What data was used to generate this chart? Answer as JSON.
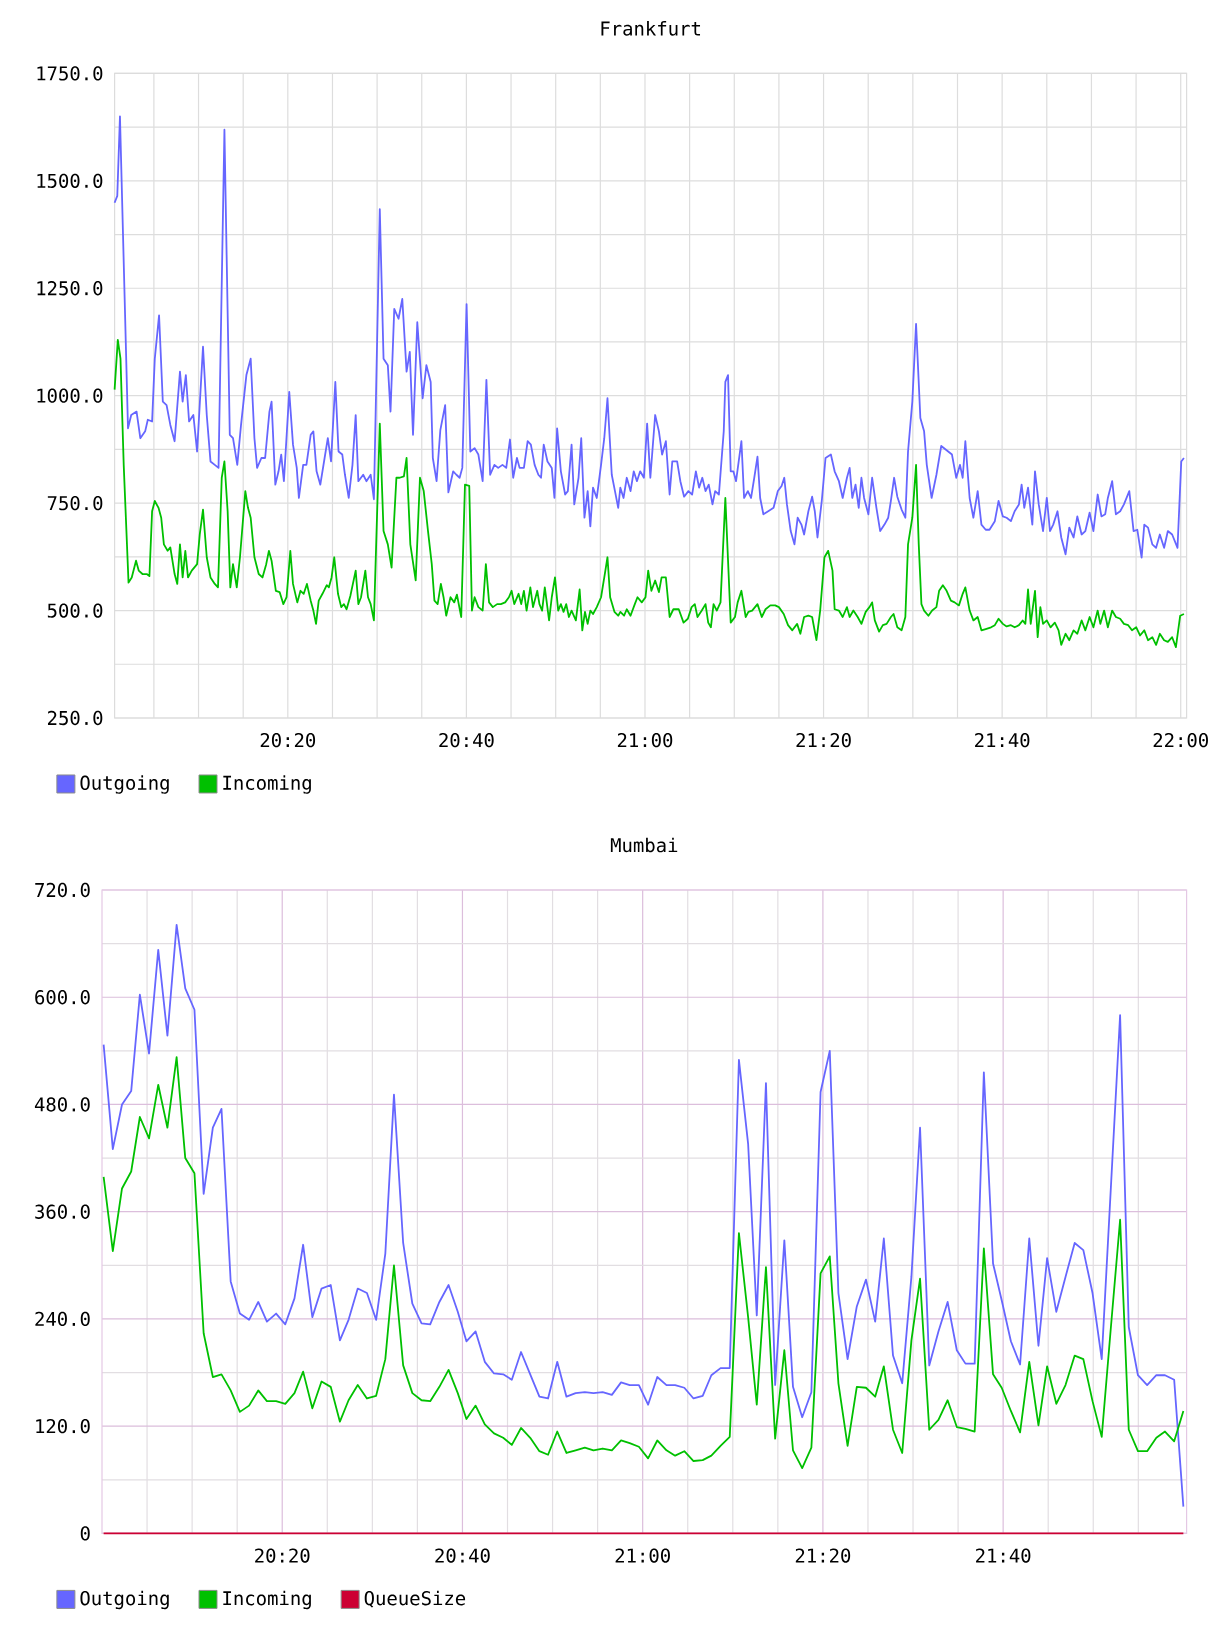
{
  "chart_data": [
    {
      "type": "line",
      "title": "Frankfurt",
      "xlim": [
        20.01,
        22.011
      ],
      "ylim": [
        250,
        1750
      ],
      "grid": true,
      "legend": "bottom left",
      "xticks": [
        {
          "value": 20.083333,
          "label": null
        },
        {
          "value": 20.166667,
          "label": null
        },
        {
          "value": 20.25,
          "label": null
        },
        {
          "value": 20.333333,
          "label": "20:20"
        },
        {
          "value": 20.416667,
          "label": null
        },
        {
          "value": 20.5,
          "label": null
        },
        {
          "value": 20.583333,
          "label": null
        },
        {
          "value": 20.666667,
          "label": "20:40"
        },
        {
          "value": 20.75,
          "label": null
        },
        {
          "value": 20.833333,
          "label": null
        },
        {
          "value": 20.916667,
          "label": null
        },
        {
          "value": 21,
          "label": "21:00"
        },
        {
          "value": 21.083333,
          "label": null
        },
        {
          "value": 21.166667,
          "label": null
        },
        {
          "value": 21.25,
          "label": null
        },
        {
          "value": 21.333333,
          "label": "21:20"
        },
        {
          "value": 21.416667,
          "label": null
        },
        {
          "value": 21.5,
          "label": null
        },
        {
          "value": 21.583333,
          "label": null
        },
        {
          "value": 21.666667,
          "label": "21:40"
        },
        {
          "value": 21.75,
          "label": null
        },
        {
          "value": 21.833333,
          "label": null
        },
        {
          "value": 21.916667,
          "label": null
        },
        {
          "value": 22,
          "label": "22:00"
        }
      ],
      "yticks": [
        {
          "value": 250,
          "label": "250.0"
        },
        {
          "value": 375,
          "label": null
        },
        {
          "value": 500,
          "label": "500.0"
        },
        {
          "value": 625,
          "label": null
        },
        {
          "value": 750,
          "label": "750.0"
        },
        {
          "value": 875,
          "label": null
        },
        {
          "value": 1000,
          "label": "1000.0"
        },
        {
          "value": 1125,
          "label": null
        },
        {
          "value": 1250,
          "label": "1250.0"
        },
        {
          "value": 1375,
          "label": null
        },
        {
          "value": 1500,
          "label": "1500.0"
        },
        {
          "value": 1625,
          "label": null
        },
        {
          "value": 1750,
          "label": "1750.0"
        }
      ],
      "series": [
        {
          "name": "Outgoing",
          "color": "#6666ff",
          "x": [
            20.01,
            20.015,
            20.02,
            20.035,
            20.041,
            20.051,
            20.058,
            20.067,
            20.072,
            20.08,
            20.085,
            20.093,
            20.1,
            20.107,
            20.114,
            20.122,
            20.132,
            20.137,
            20.143,
            20.149,
            20.157,
            20.164,
            20.175,
            20.182,
            20.189,
            20.197,
            20.204,
            20.215,
            20.225,
            20.231,
            20.239,
            20.246,
            20.256,
            20.264,
            20.271,
            20.276,
            20.284,
            20.291,
            20.299,
            20.303,
            20.31,
            20.316,
            20.321,
            20.326,
            20.336,
            20.343,
            20.35,
            20.354,
            20.362,
            20.368,
            20.376,
            20.381,
            20.387,
            20.394,
            20.402,
            20.408,
            20.414,
            20.422,
            20.428,
            20.435,
            20.44,
            20.447,
            20.454,
            20.46,
            20.465,
            20.474,
            20.48,
            20.488,
            20.494,
            20.505,
            20.512,
            20.52,
            20.525,
            20.532,
            20.54,
            20.547,
            20.555,
            20.561,
            20.567,
            20.575,
            20.585,
            20.592,
            20.6,
            20.604,
            20.611,
            20.618,
            20.627,
            20.633,
            20.642,
            20.648,
            20.654,
            20.659,
            20.667,
            20.674,
            20.682,
            20.689,
            20.697,
            20.704,
            20.711,
            20.719,
            20.726,
            20.734,
            20.741,
            20.748,
            20.754,
            20.761,
            20.766,
            20.774,
            20.781,
            20.787,
            20.794,
            20.801,
            20.806,
            20.811,
            20.818,
            20.826,
            20.831,
            20.836,
            20.843,
            20.851,
            20.856,
            20.863,
            20.868,
            20.876,
            20.881,
            20.887,
            20.893,
            20.898,
            20.903,
            20.91,
            20.918,
            20.924,
            20.93,
            20.938,
            20.944,
            20.95,
            20.954,
            20.96,
            20.966,
            20.973,
            20.979,
            20.985,
            20.991,
            20.998,
            21.004,
            21.01,
            21.019,
            21.026,
            21.032,
            21.039,
            21.046,
            21.051,
            21.06,
            21.066,
            21.073,
            21.081,
            21.088,
            21.095,
            21.101,
            21.107,
            21.113,
            21.119,
            21.126,
            21.131,
            21.138,
            21.147,
            21.15,
            21.155,
            21.16,
            21.165,
            21.17,
            21.18,
            21.185,
            21.192,
            21.198,
            21.204,
            21.21,
            21.215,
            21.221,
            21.23,
            21.24,
            21.248,
            21.255,
            21.26,
            21.265,
            21.272,
            21.279,
            21.285,
            21.292,
            21.297,
            21.305,
            21.312,
            21.317,
            21.322,
            21.33,
            21.337,
            21.347,
            21.354,
            21.362,
            21.369,
            21.377,
            21.382,
            21.387,
            21.393,
            21.399,
            21.404,
            21.409,
            21.417,
            21.424,
            21.432,
            21.439,
            21.447,
            21.454,
            21.459,
            21.465,
            21.471,
            21.479,
            21.486,
            21.491,
            21.499,
            21.506,
            21.514,
            21.521,
            21.526,
            21.535,
            21.544,
            21.553,
            21.563,
            21.573,
            21.581,
            21.588,
            21.593,
            21.598,
            21.606,
            21.613,
            21.621,
            21.628,
            21.636,
            21.643,
            21.653,
            21.66,
            21.668,
            21.675,
            21.683,
            21.69,
            21.698,
            21.703,
            21.708,
            21.715,
            21.723,
            21.728,
            21.735,
            21.743,
            21.75,
            21.756,
            21.762,
            21.77,
            21.777,
            21.785,
            21.792,
            21.8,
            21.807,
            21.815,
            21.822,
            21.83,
            21.837,
            21.845,
            21.852,
            21.859,
            21.864,
            21.872,
            21.879,
            21.887,
            21.894,
            21.904,
            21.912,
            21.919,
            21.927,
            21.932,
            21.939,
            21.947,
            21.954,
            21.961,
            21.969,
            21.976,
            21.984,
            21.994,
            22.001,
            22.006
          ],
          "values": [
            1449,
            1465,
            1650,
            924,
            955,
            963,
            901,
            917,
            944,
            940,
            1086,
            1187,
            986,
            978,
            932,
            894,
            1056,
            986,
            1048,
            940,
            955,
            870,
            1114,
            955,
            847,
            839,
            832,
            1619,
            909,
            901,
            839,
            932,
            1048,
            1086,
            901,
            832,
            855,
            855,
            963,
            986,
            793,
            824,
            863,
            801,
            1009,
            886,
            832,
            762,
            839,
            839,
            909,
            917,
            824,
            793,
            855,
            901,
            847,
            1032,
            870,
            863,
            816,
            762,
            839,
            955,
            801,
            816,
            801,
            816,
            759,
            1434,
            1086,
            1071,
            963,
            1202,
            1179,
            1225,
            1056,
            1102,
            909,
            1171,
            994,
            1071,
            1032,
            855,
            801,
            920,
            978,
            775,
            824,
            816,
            809,
            832,
            1213,
            870,
            878,
            863,
            801,
            1037,
            816,
            839,
            832,
            839,
            832,
            898,
            809,
            855,
            832,
            832,
            894,
            886,
            839,
            816,
            809,
            886,
            847,
            832,
            762,
            924,
            824,
            770,
            778,
            886,
            747,
            809,
            901,
            716,
            778,
            696,
            786,
            762,
            839,
            901,
            994,
            816,
            778,
            739,
            786,
            762,
            809,
            778,
            824,
            801,
            824,
            809,
            935,
            809,
            955,
            917,
            863,
            894,
            770,
            847,
            847,
            801,
            765,
            778,
            770,
            824,
            786,
            809,
            778,
            793,
            747,
            778,
            770,
            917,
            1032,
            1048,
            824,
            824,
            801,
            894,
            762,
            778,
            762,
            809,
            858,
            762,
            724,
            731,
            739,
            778,
            790,
            809,
            747,
            685,
            654,
            716,
            700,
            677,
            731,
            765,
            731,
            670,
            755,
            855,
            863,
            824,
            801,
            762,
            809,
            832,
            762,
            793,
            739,
            809,
            762,
            724,
            809,
            739,
            685,
            700,
            716,
            755,
            809,
            765,
            735,
            716,
            870,
            986,
            1167,
            948,
            917,
            839,
            762,
            816,
            883,
            873,
            863,
            809,
            839,
            809,
            894,
            762,
            716,
            778,
            700,
            688,
            688,
            708,
            755,
            719,
            716,
            708,
            731,
            747,
            793,
            739,
            786,
            700,
            824,
            747,
            685,
            762,
            685,
            700,
            731,
            670,
            631,
            693,
            670,
            719,
            677,
            685,
            728,
            685,
            770,
            719,
            724,
            762,
            801,
            724,
            731,
            747,
            778,
            685,
            688,
            623,
            700,
            693,
            654,
            646,
            677,
            646,
            685,
            677,
            646,
            847,
            855
          ]
        },
        {
          "name": "Incoming",
          "color": "#00c000",
          "x": [
            20.01,
            20.016,
            20.021,
            20.027,
            20.036,
            20.042,
            20.05,
            20.055,
            20.062,
            20.07,
            20.075,
            20.08,
            20.085,
            20.092,
            20.097,
            20.102,
            20.109,
            20.114,
            20.122,
            20.127,
            20.132,
            20.137,
            20.142,
            20.147,
            20.154,
            20.164,
            20.169,
            20.175,
            20.182,
            20.189,
            20.197,
            20.203,
            20.21,
            20.215,
            20.221,
            20.226,
            20.231,
            20.238,
            20.244,
            20.254,
            20.259,
            20.264,
            20.271,
            20.279,
            20.286,
            20.293,
            20.298,
            20.303,
            20.311,
            20.318,
            20.325,
            20.331,
            20.338,
            20.343,
            20.351,
            20.357,
            20.363,
            20.369,
            20.376,
            20.381,
            20.386,
            20.391,
            20.398,
            20.406,
            20.41,
            20.415,
            20.42,
            20.427,
            20.433,
            20.438,
            20.443,
            20.45,
            20.46,
            20.465,
            20.47,
            20.478,
            20.483,
            20.488,
            20.494,
            20.505,
            20.512,
            20.52,
            20.527,
            20.536,
            20.542,
            20.55,
            20.555,
            20.562,
            20.572,
            20.58,
            20.587,
            20.595,
            20.602,
            20.607,
            20.613,
            20.619,
            20.624,
            20.629,
            20.637,
            20.644,
            20.649,
            20.657,
            20.664,
            20.672,
            20.677,
            20.682,
            20.689,
            20.697,
            20.703,
            20.709,
            20.716,
            20.724,
            20.731,
            20.739,
            20.746,
            20.751,
            20.756,
            20.764,
            20.769,
            20.774,
            20.779,
            20.786,
            20.791,
            20.799,
            20.803,
            20.808,
            20.813,
            20.821,
            20.826,
            20.832,
            20.838,
            20.843,
            20.848,
            20.853,
            20.858,
            20.863,
            20.871,
            20.878,
            20.883,
            20.888,
            20.893,
            20.898,
            20.903,
            20.91,
            20.918,
            20.925,
            20.93,
            20.935,
            20.943,
            20.95,
            20.954,
            20.961,
            20.966,
            20.973,
            20.981,
            20.986,
            20.994,
            21.001,
            21.006,
            21.012,
            21.019,
            21.026,
            21.031,
            21.039,
            21.046,
            21.053,
            21.063,
            21.072,
            21.08,
            21.087,
            21.093,
            21.098,
            21.106,
            21.113,
            21.118,
            21.123,
            21.128,
            21.134,
            21.141,
            21.15,
            21.16,
            21.168,
            21.173,
            21.18,
            21.188,
            21.193,
            21.2,
            21.21,
            21.218,
            21.225,
            21.234,
            21.243,
            21.25,
            21.259,
            21.267,
            21.275,
            21.284,
            21.29,
            21.297,
            21.305,
            21.312,
            21.32,
            21.327,
            21.335,
            21.342,
            21.35,
            21.354,
            21.362,
            21.369,
            21.377,
            21.382,
            21.389,
            21.397,
            21.404,
            21.412,
            21.419,
            21.424,
            21.429,
            21.437,
            21.444,
            21.451,
            21.459,
            21.464,
            21.471,
            21.479,
            21.486,
            21.491,
            21.499,
            21.506,
            21.511,
            21.516,
            21.521,
            21.529,
            21.536,
            21.544,
            21.549,
            21.556,
            21.563,
            21.571,
            21.578,
            21.586,
            21.593,
            21.598,
            21.606,
            21.613,
            21.621,
            21.628,
            21.636,
            21.646,
            21.653,
            21.66,
            21.668,
            21.675,
            21.683,
            21.69,
            21.698,
            21.705,
            21.71,
            21.715,
            21.72,
            21.728,
            21.733,
            21.738,
            21.743,
            21.75,
            21.757,
            21.765,
            21.772,
            21.777,
            21.785,
            21.792,
            21.8,
            21.807,
            21.815,
            21.822,
            21.83,
            21.837,
            21.845,
            21.85,
            21.857,
            21.864,
            21.872,
            21.879,
            21.887,
            21.894,
            21.902,
            21.909,
            21.917,
            21.924,
            21.932,
            21.939,
            21.947,
            21.954,
            21.961,
            21.969,
            21.976,
            21.984,
            21.991,
            21.999,
            22.006
          ],
          "values": [
            1014,
            1130,
            1086,
            839,
            565,
            577,
            616,
            593,
            585,
            585,
            580,
            731,
            755,
            739,
            716,
            654,
            639,
            647,
            585,
            562,
            654,
            577,
            639,
            577,
            593,
            608,
            678,
            735,
            624,
            577,
            562,
            554,
            809,
            847,
            731,
            554,
            608,
            554,
            624,
            778,
            739,
            716,
            624,
            585,
            577,
            608,
            639,
            616,
            546,
            543,
            515,
            531,
            639,
            562,
            519,
            546,
            539,
            562,
            523,
            500,
            469,
            523,
            539,
            559,
            554,
            577,
            624,
            539,
            508,
            515,
            503,
            534,
            593,
            515,
            531,
            593,
            531,
            515,
            477,
            935,
            685,
            654,
            600,
            809,
            809,
            812,
            855,
            654,
            570,
            809,
            778,
            685,
            608,
            523,
            515,
            562,
            531,
            488,
            531,
            519,
            537,
            485,
            793,
            790,
            500,
            531,
            508,
            500,
            608,
            519,
            508,
            515,
            515,
            519,
            531,
            546,
            515,
            539,
            515,
            546,
            500,
            554,
            508,
            546,
            515,
            500,
            554,
            477,
            531,
            577,
            500,
            515,
            497,
            515,
            485,
            500,
            477,
            549,
            454,
            497,
            469,
            500,
            492,
            508,
            531,
            585,
            624,
            531,
            497,
            488,
            497,
            488,
            503,
            488,
            515,
            531,
            519,
            531,
            593,
            546,
            570,
            543,
            577,
            577,
            485,
            503,
            503,
            472,
            481,
            508,
            515,
            485,
            500,
            515,
            472,
            461,
            515,
            500,
            519,
            762,
            472,
            485,
            519,
            546,
            485,
            497,
            500,
            515,
            485,
            503,
            512,
            512,
            508,
            492,
            466,
            454,
            469,
            446,
            485,
            488,
            485,
            431,
            500,
            624,
            639,
            593,
            503,
            500,
            485,
            508,
            485,
            500,
            485,
            469,
            497,
            508,
            519,
            477,
            451,
            466,
            469,
            485,
            492,
            461,
            454,
            485,
            654,
            716,
            839,
            654,
            515,
            500,
            488,
            500,
            508,
            546,
            559,
            546,
            523,
            519,
            512,
            539,
            554,
            500,
            477,
            485,
            454,
            457,
            461,
            466,
            481,
            469,
            463,
            466,
            461,
            466,
            477,
            469,
            549,
            469,
            546,
            438,
            508,
            469,
            477,
            461,
            472,
            454,
            420,
            446,
            431,
            454,
            446,
            477,
            454,
            485,
            461,
            500,
            469,
            500,
            461,
            500,
            485,
            481,
            469,
            466,
            454,
            461,
            442,
            454,
            431,
            438,
            420,
            446,
            431,
            427,
            438,
            415,
            488,
            492
          ]
        }
      ]
    },
    {
      "type": "line",
      "title": "Mumbai",
      "xlim": [
        20,
        22.006
      ],
      "ylim": [
        0,
        720
      ],
      "grid": true,
      "legend": "bottom left",
      "xticks": [
        {
          "value": 20.083333,
          "label": null
        },
        {
          "value": 20.166667,
          "label": null
        },
        {
          "value": 20.25,
          "label": null
        },
        {
          "value": 20.333333,
          "label": "20:20"
        },
        {
          "value": 20.416667,
          "label": null
        },
        {
          "value": 20.5,
          "label": null
        },
        {
          "value": 20.583333,
          "label": null
        },
        {
          "value": 20.666667,
          "label": "20:40"
        },
        {
          "value": 20.75,
          "label": null
        },
        {
          "value": 20.833333,
          "label": null
        },
        {
          "value": 20.916667,
          "label": null
        },
        {
          "value": 21,
          "label": "21:00"
        },
        {
          "value": 21.083333,
          "label": null
        },
        {
          "value": 21.166667,
          "label": null
        },
        {
          "value": 21.25,
          "label": null
        },
        {
          "value": 21.333333,
          "label": "21:20"
        },
        {
          "value": 21.416667,
          "label": null
        },
        {
          "value": 21.5,
          "label": null
        },
        {
          "value": 21.583333,
          "label": null
        },
        {
          "value": 21.666667,
          "label": "21:40"
        },
        {
          "value": 21.75,
          "label": null
        },
        {
          "value": 21.833333,
          "label": null
        },
        {
          "value": 21.916667,
          "label": null
        }
      ],
      "yticks": [
        0,
        {
          "value": 60,
          "label": null
        },
        {
          "value": 120,
          "label": "120.0"
        },
        {
          "value": 180,
          "label": null
        },
        {
          "value": 240,
          "label": "240.0"
        },
        {
          "value": 300,
          "label": null
        },
        {
          "value": 360,
          "label": "360.0"
        },
        {
          "value": 420,
          "label": null
        },
        {
          "value": 480,
          "label": "480.0"
        },
        {
          "value": 540,
          "label": null
        },
        {
          "value": 600,
          "label": "600.0"
        },
        {
          "value": 660,
          "label": null
        },
        {
          "value": 720,
          "label": "720.0"
        }
      ],
      "x": [
        20.003,
        20.02,
        20.037,
        20.054,
        20.07,
        20.087,
        20.104,
        20.121,
        20.138,
        20.154,
        20.171,
        20.188,
        20.205,
        20.221,
        20.238,
        20.255,
        20.272,
        20.289,
        20.305,
        20.322,
        20.339,
        20.356,
        20.372,
        20.389,
        20.406,
        20.423,
        20.44,
        20.456,
        20.473,
        20.49,
        20.507,
        20.524,
        20.54,
        20.557,
        20.574,
        20.591,
        20.607,
        20.624,
        20.641,
        20.658,
        20.674,
        20.691,
        20.708,
        20.725,
        20.742,
        20.758,
        20.775,
        20.792,
        20.809,
        20.825,
        20.842,
        20.859,
        20.876,
        20.893,
        20.909,
        20.926,
        20.943,
        20.96,
        20.976,
        20.993,
        21.01,
        21.027,
        21.044,
        21.06,
        21.077,
        21.094,
        21.111,
        21.127,
        21.144,
        21.161,
        21.178,
        21.195,
        21.211,
        21.228,
        21.245,
        21.262,
        21.278,
        21.295,
        21.312,
        21.329,
        21.346,
        21.362,
        21.379,
        21.396,
        21.413,
        21.43,
        21.446,
        21.463,
        21.48,
        21.497,
        21.513,
        21.53,
        21.547,
        21.564,
        21.581,
        21.597,
        21.614,
        21.631,
        21.648,
        21.664,
        21.681,
        21.698,
        21.715,
        21.732,
        21.748,
        21.765,
        21.782,
        21.799,
        21.815,
        21.832,
        21.849,
        21.866,
        21.883,
        21.899,
        21.916,
        21.933,
        21.95,
        21.966,
        21.983,
        22.0
      ],
      "series": [
        {
          "name": "Outgoing",
          "color": "#6666ff",
          "values": [
            547,
            430,
            480,
            495,
            603,
            537,
            653,
            557,
            681,
            610,
            586,
            380,
            454,
            475,
            282,
            246,
            239,
            259,
            237,
            246,
            234,
            263,
            323,
            242,
            274,
            278,
            216,
            239,
            274,
            269,
            239,
            313,
            491,
            325,
            257,
            235,
            234,
            259,
            278,
            248,
            215,
            226,
            192,
            179,
            178,
            172,
            203,
            178,
            153,
            151,
            192,
            153,
            157,
            158,
            157,
            158,
            155,
            169,
            166,
            166,
            144,
            175,
            166,
            166,
            163,
            151,
            154,
            177,
            185,
            185,
            530,
            436,
            244,
            504,
            166,
            328,
            164,
            130,
            158,
            494,
            540,
            269,
            195,
            254,
            284,
            237,
            330,
            199,
            168,
            287,
            454,
            188,
            226,
            259,
            205,
            190,
            190,
            516,
            302,
            261,
            215,
            189,
            330,
            210,
            308,
            248,
            287,
            325,
            317,
            269,
            195,
            388,
            580,
            231,
            177,
            166,
            177,
            177,
            172,
            30
          ]
        },
        {
          "name": "Incoming",
          "color": "#00c000",
          "values": [
            399,
            316,
            386,
            405,
            466,
            442,
            502,
            454,
            533,
            420,
            403,
            224,
            175,
            178,
            160,
            136,
            143,
            160,
            148,
            148,
            145,
            157,
            181,
            140,
            170,
            164,
            125,
            149,
            166,
            151,
            154,
            195,
            300,
            188,
            157,
            149,
            148,
            164,
            183,
            157,
            128,
            143,
            122,
            112,
            107,
            99,
            118,
            107,
            92,
            88,
            114,
            90,
            93,
            96,
            93,
            95,
            93,
            104,
            101,
            97,
            84,
            104,
            93,
            87,
            92,
            81,
            82,
            87,
            98,
            108,
            336,
            242,
            144,
            298,
            106,
            205,
            93,
            73,
            96,
            291,
            310,
            168,
            98,
            164,
            163,
            153,
            187,
            116,
            90,
            216,
            285,
            116,
            127,
            149,
            119,
            117,
            114,
            319,
            178,
            163,
            137,
            113,
            192,
            121,
            187,
            145,
            166,
            199,
            195,
            148,
            108,
            231,
            351,
            116,
            92,
            92,
            107,
            114,
            103,
            137
          ]
        },
        {
          "name": "QueueSize",
          "color": "#cc0033",
          "values": [
            0,
            0,
            0,
            0,
            0,
            0,
            0,
            0,
            0,
            0,
            0,
            0,
            0,
            0,
            0,
            0,
            0,
            0,
            0,
            0,
            0,
            0,
            0,
            0,
            0,
            0,
            0,
            0,
            0,
            0,
            0,
            0,
            0,
            0,
            0,
            0,
            0,
            0,
            0,
            0,
            0,
            0,
            0,
            0,
            0,
            0,
            0,
            0,
            0,
            0,
            0,
            0,
            0,
            0,
            0,
            0,
            0,
            0,
            0,
            0,
            0,
            0,
            0,
            0,
            0,
            0,
            0,
            0,
            0,
            0,
            0,
            0,
            0,
            0,
            0,
            0,
            0,
            0,
            0,
            0,
            0,
            0,
            0,
            0,
            0,
            0,
            0,
            0,
            0,
            0,
            0,
            0,
            0,
            0,
            0,
            0,
            0,
            0,
            0,
            0,
            0,
            0,
            0,
            0,
            0,
            0,
            0,
            0,
            0,
            0,
            0,
            0,
            0,
            0,
            0,
            0,
            0,
            0,
            0,
            0
          ]
        }
      ]
    }
  ]
}
